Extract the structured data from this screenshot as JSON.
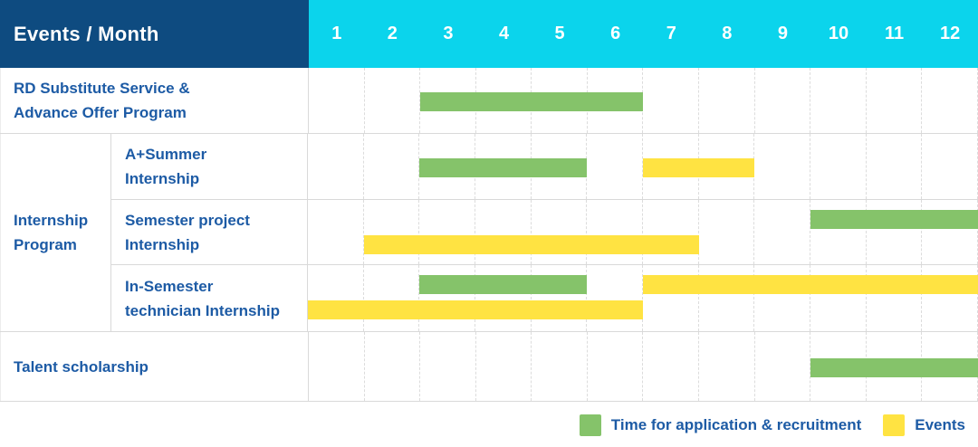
{
  "header": {
    "corner_label": "Events / Month",
    "months": [
      "1",
      "2",
      "3",
      "4",
      "5",
      "6",
      "7",
      "8",
      "9",
      "10",
      "11",
      "12"
    ]
  },
  "colors": {
    "header_navy": "#0e4b80",
    "header_cyan": "#0bd4ec",
    "application_green": "#85c36a",
    "events_yellow": "#ffe342",
    "label_blue": "#1d5ba5",
    "grid_line": "#d9d9d9"
  },
  "chart_data": {
    "type": "gantt",
    "x_axis": {
      "label": "Month",
      "categories": [
        1,
        2,
        3,
        4,
        5,
        6,
        7,
        8,
        9,
        10,
        11,
        12
      ]
    },
    "legend_position": "bottom-right",
    "grid": true,
    "series_legend": [
      {
        "key": "application",
        "label": "Time for application & recruitment",
        "color": "#85c36a"
      },
      {
        "key": "events",
        "label": "Events",
        "color": "#ffe342"
      }
    ],
    "group_label": {
      "text": "Internship Program",
      "label_lines": [
        "Internship",
        "Program"
      ]
    },
    "rows": [
      {
        "label": "RD Substitute Service & Advance Offer Program",
        "label_lines": [
          "RD Substitute Service &",
          "Advance Offer Program"
        ],
        "group": null,
        "lines": 1,
        "bars": [
          {
            "series": "application",
            "start_month": 3,
            "end_month": 6,
            "line": 1
          }
        ]
      },
      {
        "label": "A+Summer Internship",
        "label_lines": [
          "A+Summer",
          "Internship"
        ],
        "group": "Internship Program",
        "lines": 1,
        "bars": [
          {
            "series": "application",
            "start_month": 3,
            "end_month": 5,
            "line": 1
          },
          {
            "series": "events",
            "start_month": 7,
            "end_month": 8,
            "line": 1
          }
        ]
      },
      {
        "label": "Semester project Internship",
        "label_lines": [
          "Semester project",
          "Internship"
        ],
        "group": "Internship Program",
        "lines": 2,
        "bars": [
          {
            "series": "application",
            "start_month": 10,
            "end_month": 12,
            "line": 1
          },
          {
            "series": "events",
            "start_month": 2,
            "end_month": 7,
            "line": 2
          }
        ]
      },
      {
        "label": "In-Semester technician Internship",
        "label_lines": [
          "In-Semester",
          "technician Internship"
        ],
        "group": "Internship Program",
        "lines": 2,
        "bars": [
          {
            "series": "application",
            "start_month": 3,
            "end_month": 5,
            "line": 1
          },
          {
            "series": "events",
            "start_month": 7,
            "end_month": 12,
            "line": 1
          },
          {
            "series": "events",
            "start_month": 1,
            "end_month": 6,
            "line": 2
          }
        ]
      },
      {
        "label": "Talent scholarship",
        "label_lines": [
          "Talent scholarship"
        ],
        "group": null,
        "lines": 1,
        "bars": [
          {
            "series": "application",
            "start_month": 10,
            "end_month": 12,
            "line": 1
          }
        ]
      }
    ]
  }
}
